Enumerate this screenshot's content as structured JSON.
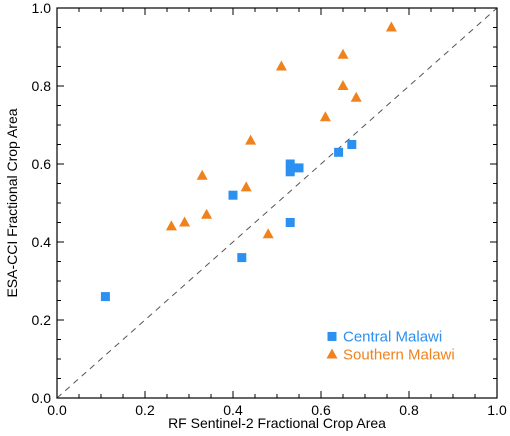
{
  "chart_data": {
    "type": "scatter",
    "title": "",
    "xlabel": "RF Sentinel-2 Fractional Crop Area",
    "ylabel": "ESA-CCI Fractional Crop Area",
    "xlim": [
      0.0,
      1.0
    ],
    "ylim": [
      0.0,
      1.0
    ],
    "xticks": [
      "0.0",
      "0.2",
      "0.4",
      "0.6",
      "0.8",
      "1.0"
    ],
    "yticks": [
      "0.0",
      "0.2",
      "0.4",
      "0.6",
      "0.8",
      "1.0"
    ],
    "grid": false,
    "reference_line": {
      "type": "1:1",
      "style": "dashed",
      "color": "#555555"
    },
    "legend": "bottom-right",
    "series": [
      {
        "name": "Central Malawi",
        "marker": "square",
        "color": "#2b90f0",
        "points": [
          [
            0.11,
            0.26
          ],
          [
            0.4,
            0.52
          ],
          [
            0.42,
            0.36
          ],
          [
            0.53,
            0.45
          ],
          [
            0.53,
            0.6
          ],
          [
            0.53,
            0.58
          ],
          [
            0.55,
            0.59
          ],
          [
            0.64,
            0.63
          ],
          [
            0.67,
            0.65
          ]
        ]
      },
      {
        "name": "Southern Malawi",
        "marker": "triangle",
        "color": "#f0821e",
        "points": [
          [
            0.26,
            0.44
          ],
          [
            0.29,
            0.45
          ],
          [
            0.33,
            0.57
          ],
          [
            0.34,
            0.47
          ],
          [
            0.43,
            0.54
          ],
          [
            0.44,
            0.66
          ],
          [
            0.48,
            0.42
          ],
          [
            0.51,
            0.85
          ],
          [
            0.61,
            0.72
          ],
          [
            0.65,
            0.88
          ],
          [
            0.65,
            0.8
          ],
          [
            0.68,
            0.77
          ],
          [
            0.76,
            0.95
          ]
        ]
      }
    ]
  }
}
